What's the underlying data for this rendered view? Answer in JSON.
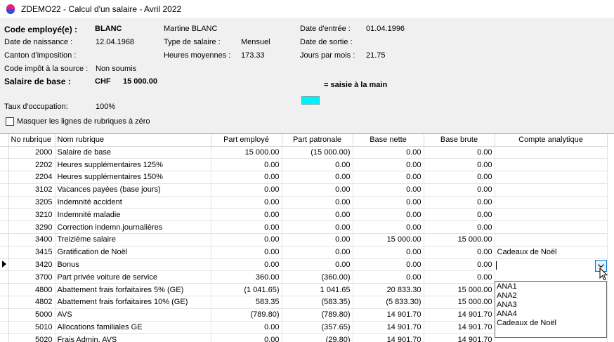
{
  "window": {
    "title": "ZDEMO22 - Calcul d'un salaire - Avril 2022"
  },
  "header": {
    "code_employe_label": "Code employé(e) :",
    "code_employe_value": "BLANC",
    "nom_complet": "Martine BLANC",
    "date_entree_label": "Date d'entrée :",
    "date_entree_value": "01.04.1996",
    "date_naissance_label": "Date de naissance :",
    "date_naissance_value": "12.04.1968",
    "type_salaire_label": "Type de salaire :",
    "type_salaire_value": "Mensuel",
    "date_sortie_label": "Date de sortie :",
    "canton_label": "Canton d'imposition :",
    "heures_label": "Heures moyennes :",
    "heures_value": "173.33",
    "jours_label": "Jours par mois :",
    "jours_value": "21.75",
    "code_impot_label": "Code impôt à la source :",
    "code_impot_value": "Non soumis",
    "salaire_base_label": "Salaire de  base :",
    "salaire_base_currency": "CHF",
    "salaire_base_value": "15 000.00",
    "legend_text": "= saisie à la main",
    "legend_color": "#00f0ff",
    "taux_label": "Taux d'occupation:",
    "taux_value": "100%",
    "checkbox_label": "Masquer les lignes de rubriques à zéro"
  },
  "grid": {
    "columns": [
      "No rubrique",
      "Nom rubrique",
      "Part employé",
      "Part patronale",
      "Base nette",
      "Base brute",
      "Compte analytique"
    ],
    "rows": [
      [
        "2000",
        "Salaire de base",
        "15 000.00",
        "(15 000.00)",
        "0.00",
        "0.00",
        ""
      ],
      [
        "2202",
        "Heures supplémentaires 125%",
        "0.00",
        "0.00",
        "0.00",
        "0.00",
        ""
      ],
      [
        "2204",
        "Heures supplémentaires 150%",
        "0.00",
        "0.00",
        "0.00",
        "0.00",
        ""
      ],
      [
        "3102",
        "Vacances payées (base jours)",
        "0.00",
        "0.00",
        "0.00",
        "0.00",
        ""
      ],
      [
        "3205",
        "Indemnité accident",
        "0.00",
        "0.00",
        "0.00",
        "0.00",
        ""
      ],
      [
        "3210",
        "Indemnité maladie",
        "0.00",
        "0.00",
        "0.00",
        "0.00",
        ""
      ],
      [
        "3290",
        "Correction indemn.journalières",
        "0.00",
        "0.00",
        "0.00",
        "0.00",
        ""
      ],
      [
        "3400",
        "Treizième salaire",
        "0.00",
        "0.00",
        "15 000.00",
        "15 000.00",
        ""
      ],
      [
        "3415",
        "Gratification de Noël",
        "0.00",
        "0.00",
        "0.00",
        "0.00",
        "Cadeaux de Noël"
      ],
      [
        "3420",
        "Bonus",
        "0.00",
        "0.00",
        "0.00",
        "0.00",
        ""
      ],
      [
        "3700",
        "Part privée voiture de service",
        "360.00",
        "(360.00)",
        "0.00",
        "0.00",
        ""
      ],
      [
        "4800",
        "Abattement frais forfaitaires 5% (GE)",
        "(1 041.65)",
        "1 041.65",
        "20 833.30",
        "15 000.00",
        ""
      ],
      [
        "4802",
        "Abattement frais forfaitaires 10% (GE)",
        "583.35",
        "(583.35)",
        "(5 833.30)",
        "15 000.00",
        ""
      ],
      [
        "5000",
        "AVS",
        "(789.80)",
        "(789.80)",
        "14 901.70",
        "14 901.70",
        ""
      ],
      [
        "5010",
        "Allocations familiales GE",
        "0.00",
        "(357.65)",
        "14 901.70",
        "14 901.70",
        ""
      ],
      [
        "5020",
        "Frais Admin. AVS",
        "0.00",
        "(29.80)",
        "14 901.70",
        "14 901.70",
        ""
      ]
    ],
    "current_row_index": 9
  },
  "dropdown": {
    "options": [
      "ANA1",
      "ANA2",
      "ANA3",
      "ANA4",
      "Cadeaux de Noël"
    ]
  }
}
